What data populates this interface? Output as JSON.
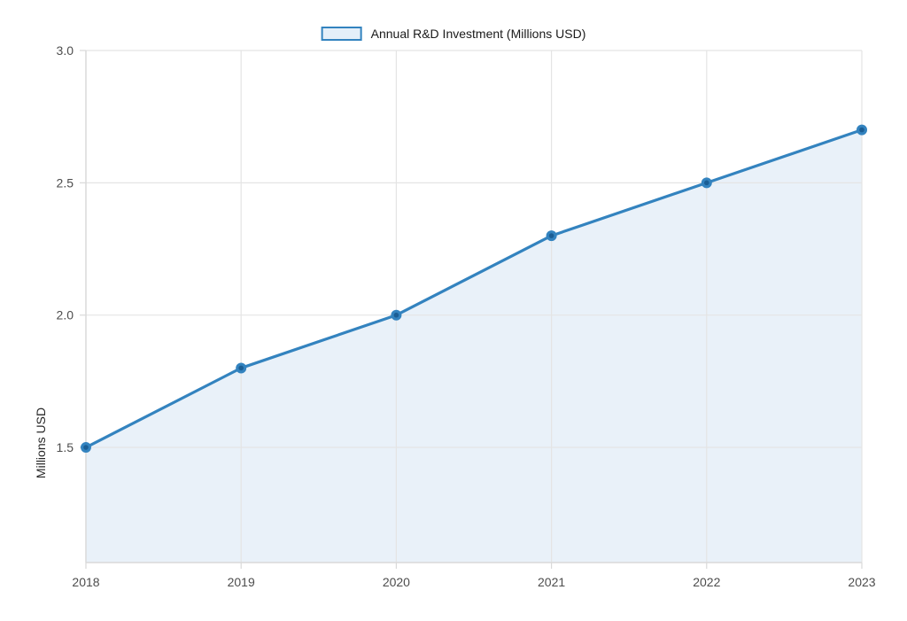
{
  "chart_data": {
    "type": "area",
    "title": "",
    "x": [
      2018,
      2019,
      2020,
      2021,
      2022,
      2023
    ],
    "series": [
      {
        "name": "Annual R&D Investment (Millions USD)",
        "values": [
          1.5,
          1.8,
          2.0,
          2.3,
          2.5,
          2.7
        ]
      }
    ],
    "xlabel": "",
    "ylabel": "Millions USD",
    "xlim": [
      2018,
      2023
    ],
    "ylim": [
      1.065,
      3.0
    ],
    "yticks": [
      1.5,
      2.0,
      2.5,
      3.0
    ],
    "ytick_labels": [
      "1.5",
      "2.0",
      "2.5",
      "3.0"
    ],
    "xticks": [
      2018,
      2019,
      2020,
      2021,
      2022,
      2023
    ],
    "xtick_labels": [
      "2018",
      "2019",
      "2020",
      "2021",
      "2022",
      "2023"
    ],
    "grid": true,
    "markers": true,
    "legend_position": "top-center"
  },
  "legend": {
    "label": "Annual R&D Investment (Millions USD)"
  },
  "colors": {
    "line": "#3383bf",
    "marker_outer": "#3383bf",
    "marker_inner": "#1b5e95",
    "area_fill": "#e9f1f9",
    "grid": "#e4e4e4",
    "axis": "#d9d9d9",
    "tick_text": "#4d4d4d",
    "legend_text": "#1a1a1a",
    "background": "#ffffff"
  }
}
